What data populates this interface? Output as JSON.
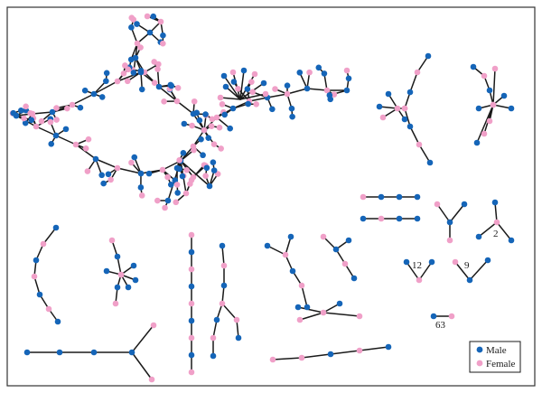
{
  "colors": {
    "male": "#1565b8",
    "female": "#f0a0c8",
    "edge": "#1a1a1a"
  },
  "legend": {
    "items": [
      {
        "label": "Male",
        "sex": "M"
      },
      {
        "label": "Female",
        "sex": "F"
      }
    ]
  },
  "count_labels": [
    "2",
    "12",
    "9",
    "63"
  ],
  "components": [
    "giant-component",
    "component-tristar-right",
    "component-star-farright",
    "component-dyads",
    "component-stars-small",
    "component-counted-motifs",
    "component-chains-left",
    "component-chains-middle",
    "component-trees-middle",
    "component-bottom-lines"
  ]
}
